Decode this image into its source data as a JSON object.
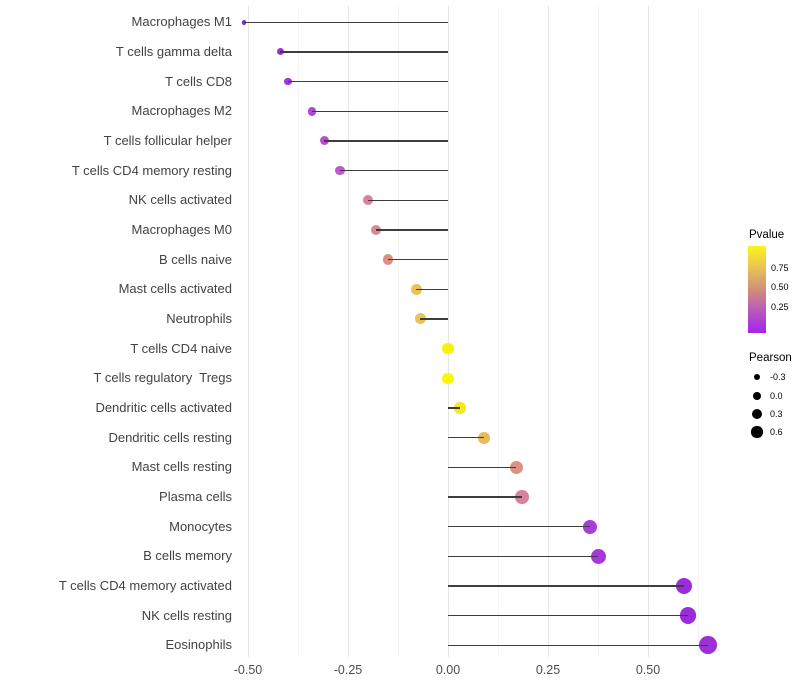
{
  "chart_data": {
    "type": "scatter",
    "subtype": "lollipop",
    "title": "",
    "xlabel": "",
    "ylabel": "",
    "x_ticks": [
      "-0.50",
      "-0.25",
      "0.00",
      "0.25",
      "0.50"
    ],
    "x_tick_values": [
      -0.5,
      -0.25,
      0.0,
      0.25,
      0.5
    ],
    "x_minor_tick_values": [
      -0.375,
      -0.125,
      0.125,
      0.375,
      0.625
    ],
    "xlim": [
      -0.535,
      0.675
    ],
    "grid": "vertical-only",
    "legend_position": "right",
    "points": [
      {
        "label": "Macrophages M1",
        "pearson": -0.51,
        "color": "#9023d9",
        "size": 4.5
      },
      {
        "label": "T cells gamma delta",
        "pearson": -0.42,
        "color": "#9c31db",
        "size": 7
      },
      {
        "label": "T cells CD8",
        "pearson": -0.4,
        "color": "#a338da",
        "size": 7.5
      },
      {
        "label": "Macrophages M2",
        "pearson": -0.34,
        "color": "#af49d4",
        "size": 8.5
      },
      {
        "label": "T cells follicular helper",
        "pearson": -0.31,
        "color": "#b94fd0",
        "size": 9
      },
      {
        "label": "T cells CD4 memory resting",
        "pearson": -0.27,
        "color": "#bf58c8",
        "size": 9.5
      },
      {
        "label": "NK cells activated",
        "pearson": -0.2,
        "color": "#d9819d",
        "size": 10
      },
      {
        "label": "Macrophages M0",
        "pearson": -0.18,
        "color": "#db8890",
        "size": 10.5
      },
      {
        "label": "B cells naive",
        "pearson": -0.15,
        "color": "#dd9080",
        "size": 10.5
      },
      {
        "label": "Mast cells activated",
        "pearson": -0.08,
        "color": "#eac05c",
        "size": 11
      },
      {
        "label": "Neutrophils",
        "pearson": -0.07,
        "color": "#ecc355",
        "size": 11
      },
      {
        "label": "T cells CD4 naive",
        "pearson": 0.0,
        "color": "#f9f303",
        "size": 11.5
      },
      {
        "label": "T cells regulatory  Tregs",
        "pearson": 0.0,
        "color": "#fbf800",
        "size": 11.5
      },
      {
        "label": "Dendritic cells activated",
        "pearson": 0.03,
        "color": "#f5e722",
        "size": 11.5
      },
      {
        "label": "Dendritic cells resting",
        "pearson": 0.09,
        "color": "#eab95a",
        "size": 12
      },
      {
        "label": "Mast cells resting",
        "pearson": 0.17,
        "color": "#dd9184",
        "size": 13
      },
      {
        "label": "Plasma cells",
        "pearson": 0.185,
        "color": "#d8829c",
        "size": 13.5
      },
      {
        "label": "Monocytes",
        "pearson": 0.355,
        "color": "#a83dda",
        "size": 14
      },
      {
        "label": "B cells memory",
        "pearson": 0.375,
        "color": "#a637dc",
        "size": 15
      },
      {
        "label": "T cells CD4 memory activated",
        "pearson": 0.59,
        "color": "#9c2bdb",
        "size": 16.5
      },
      {
        "label": "NK cells resting",
        "pearson": 0.6,
        "color": "#9c2bdb",
        "size": 16.5
      },
      {
        "label": "Eosinophils",
        "pearson": 0.65,
        "color": "#9e30d8",
        "size": 17.5
      }
    ],
    "legend_pvalue": {
      "title": "Pvalue",
      "ticks": [
        {
          "label": "0.75",
          "offset": 22
        },
        {
          "label": "0.50",
          "offset": 41
        },
        {
          "label": "0.25",
          "offset": 61
        }
      ],
      "gradient_stops": [
        "#fbf51b",
        "#e9c254",
        "#d08f7b",
        "#b858bc",
        "#a524ef"
      ]
    },
    "legend_pearson": {
      "title": "Pearson",
      "dot_color": "#000000",
      "items": [
        {
          "label": "-0.3",
          "size": 6.7
        },
        {
          "label": "0.0",
          "size": 8.7
        },
        {
          "label": "0.3",
          "size": 10
        },
        {
          "label": "0.6",
          "size": 11.3
        }
      ]
    }
  }
}
